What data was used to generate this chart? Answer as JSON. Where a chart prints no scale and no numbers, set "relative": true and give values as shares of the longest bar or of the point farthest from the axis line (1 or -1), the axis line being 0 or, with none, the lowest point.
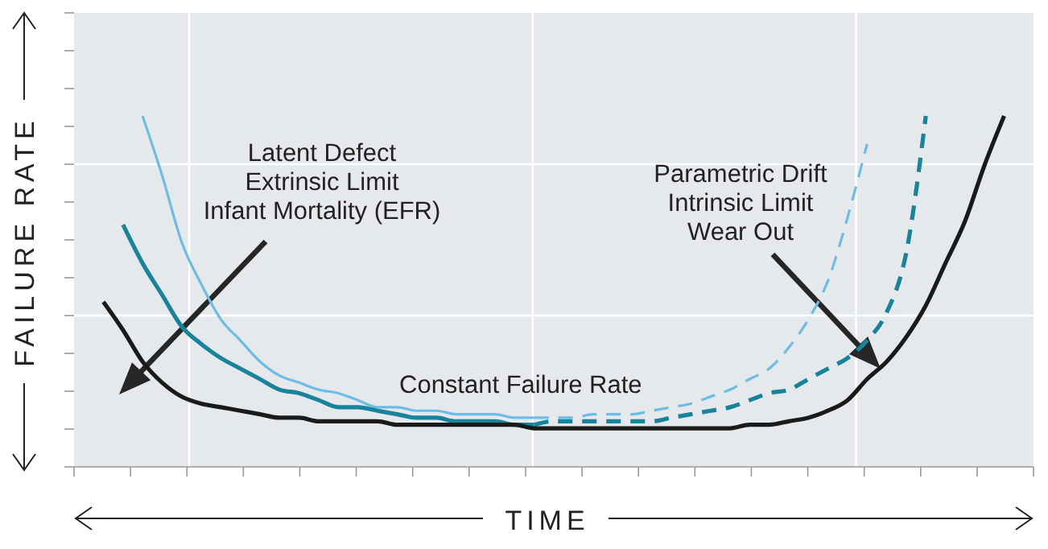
{
  "chart_data": {
    "type": "line",
    "xlabel": "TIME",
    "ylabel": "FAILURE RATE",
    "relative": true,
    "grid": true,
    "categories": [
      null,
      null,
      null,
      null,
      null,
      null,
      null,
      null,
      null,
      null,
      null,
      null,
      null,
      null,
      null,
      null,
      null,
      null,
      null,
      null,
      null,
      null,
      null,
      null,
      null,
      null,
      null,
      null,
      null,
      null,
      null,
      null,
      null,
      null,
      null,
      null,
      null,
      null,
      null,
      null,
      null,
      null,
      null,
      null,
      null,
      null,
      null,
      null,
      null
    ],
    "series": [
      {
        "color": "#6bbde6",
        "line_style": "solid",
        "values": [
          null,
          null,
          null,
          1.0,
          0.83,
          0.64,
          0.52,
          0.42,
          0.36,
          0.3,
          0.26,
          0.24,
          0.22,
          0.21,
          0.19,
          0.17,
          0.17,
          0.16,
          0.16,
          0.15,
          0.15,
          0.15,
          0.14,
          0.14,
          null,
          null,
          null,
          null,
          null,
          null,
          null,
          null,
          null,
          null,
          null,
          null,
          null,
          null,
          null,
          null,
          null,
          null,
          null,
          null,
          null,
          null,
          null,
          null,
          null
        ]
      },
      {
        "color": "#6bbde6",
        "line_style": "dashed",
        "values": [
          null,
          null,
          null,
          null,
          null,
          null,
          null,
          null,
          null,
          null,
          null,
          null,
          null,
          null,
          null,
          null,
          null,
          null,
          null,
          null,
          null,
          null,
          null,
          0.14,
          0.14,
          0.14,
          0.15,
          0.15,
          0.15,
          0.16,
          0.17,
          0.18,
          0.2,
          0.22,
          0.25,
          0.28,
          0.34,
          0.42,
          0.53,
          0.71,
          0.92,
          null,
          null,
          null,
          null,
          null,
          null,
          null,
          null
        ]
      },
      {
        "color": "#17849b",
        "line_style": "solid",
        "values": [
          null,
          null,
          0.69,
          0.58,
          0.49,
          0.4,
          0.35,
          0.31,
          0.28,
          0.25,
          0.22,
          0.21,
          0.19,
          0.17,
          0.17,
          0.16,
          0.15,
          0.14,
          0.14,
          0.13,
          0.13,
          0.13,
          0.12,
          0.12,
          null,
          null,
          null,
          null,
          null,
          null,
          null,
          null,
          null,
          null,
          null,
          null,
          null,
          null,
          null,
          null,
          null,
          null,
          null,
          null,
          null,
          null,
          null,
          null,
          null
        ]
      },
      {
        "color": "#17849b",
        "line_style": "dashed",
        "values": [
          null,
          null,
          null,
          null,
          null,
          null,
          null,
          null,
          null,
          null,
          null,
          null,
          null,
          null,
          null,
          null,
          null,
          null,
          null,
          null,
          null,
          null,
          null,
          0.12,
          0.13,
          0.13,
          0.13,
          0.13,
          0.13,
          0.13,
          0.14,
          0.15,
          0.16,
          0.17,
          0.19,
          0.21,
          0.22,
          0.25,
          0.28,
          0.31,
          0.36,
          0.44,
          0.61,
          1.0,
          null,
          null,
          null,
          null,
          null
        ]
      },
      {
        "color": "#1a1a1a",
        "line_style": "solid",
        "values": [
          null,
          0.47,
          0.39,
          0.3,
          0.24,
          0.2,
          0.18,
          0.17,
          0.16,
          0.15,
          0.14,
          0.14,
          0.13,
          0.13,
          0.13,
          0.13,
          0.12,
          0.12,
          0.12,
          0.12,
          0.12,
          0.12,
          0.12,
          0.11,
          0.11,
          0.11,
          0.11,
          0.11,
          0.11,
          0.11,
          0.11,
          0.11,
          0.11,
          0.11,
          0.12,
          0.12,
          0.13,
          0.14,
          0.16,
          0.19,
          0.25,
          0.3,
          0.37,
          0.46,
          0.58,
          0.7,
          0.86,
          1.0,
          null
        ]
      }
    ],
    "annotations": [
      "Latent Defect\nExtrinsic Limit\nInfant Mortality (EFR)",
      "Parametric Drift\nIntrinsic Limit\nWear Out",
      "Constant Failure Rate"
    ]
  }
}
